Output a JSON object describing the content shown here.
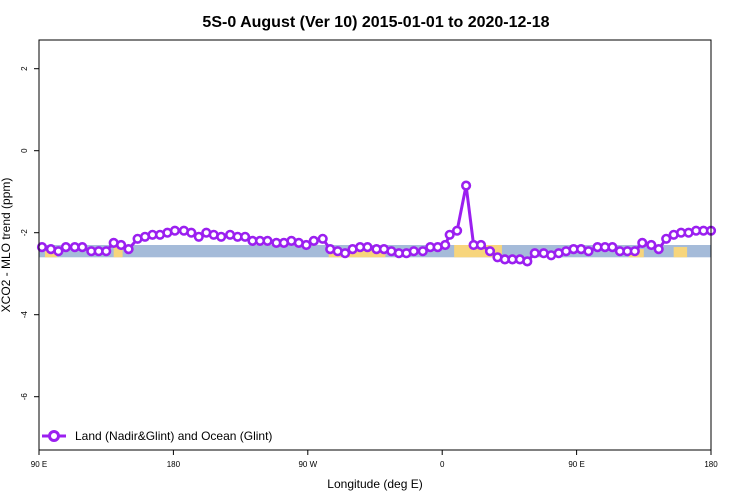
{
  "chart_data": {
    "type": "line",
    "title": "5S-0 August (Ver 10)   2015-01-01 to 2020-12-18",
    "xlabel": "Longitude (deg E)",
    "ylabel": "XCO2 - MLO trend (ppm)",
    "x_ticks": [
      {
        "value": 90,
        "label": "90 E"
      },
      {
        "value": 180,
        "label": "180"
      },
      {
        "value": 270,
        "label": "90 W"
      },
      {
        "value": 360,
        "label": "0"
      },
      {
        "value": 450,
        "label": "90 E"
      },
      {
        "value": 540,
        "label": "180"
      }
    ],
    "y_ticks": [
      {
        "value": 2,
        "label": "2"
      },
      {
        "value": 0,
        "label": "0"
      },
      {
        "value": -2,
        "label": "-2"
      },
      {
        "value": -4,
        "label": "-4"
      },
      {
        "value": -6,
        "label": "-6"
      }
    ],
    "xlim": [
      90,
      540
    ],
    "ylim": [
      -7.3,
      2.7
    ],
    "grid": false,
    "legend_position": "bottom-left",
    "band": {
      "y_min": -2.6,
      "y_max": -2.3,
      "color": "#a5bbd9"
    },
    "land_color": "#f7d57c",
    "land_segments": [
      {
        "x0": 94,
        "x1": 102,
        "y_top": -2.45
      },
      {
        "x0": 140,
        "x1": 146,
        "y_top": -2.35
      },
      {
        "x0": 284,
        "x1": 322,
        "y_top": -2.4
      },
      {
        "x0": 368,
        "x1": 400,
        "y_top": -2.3
      },
      {
        "x0": 485,
        "x1": 495,
        "y_top": -2.4
      },
      {
        "x0": 515,
        "x1": 524,
        "y_top": -2.35
      }
    ],
    "series": [
      {
        "name": "Land (Nadir&Glint) and Ocean (Glint)",
        "color": "#9b1ff0",
        "x": [
          92,
          98,
          103,
          108,
          114,
          119,
          125,
          130,
          135,
          140,
          145,
          150,
          156,
          161,
          166,
          171,
          176,
          181,
          187,
          192,
          197,
          202,
          207,
          212,
          218,
          223,
          228,
          233,
          238,
          243,
          249,
          254,
          259,
          264,
          269,
          274,
          280,
          285,
          290,
          295,
          300,
          305,
          310,
          316,
          321,
          326,
          331,
          336,
          341,
          347,
          352,
          357,
          362,
          365,
          370,
          376,
          381,
          386,
          392,
          397,
          402,
          407,
          412,
          417,
          422,
          428,
          433,
          438,
          443,
          448,
          453,
          458,
          464,
          469,
          474,
          479,
          484,
          489,
          494,
          500,
          505,
          510,
          515,
          520,
          525,
          530,
          535,
          540
        ],
        "y": [
          -2.35,
          -2.4,
          -2.45,
          -2.35,
          -2.35,
          -2.35,
          -2.45,
          -2.45,
          -2.45,
          -2.25,
          -2.3,
          -2.4,
          -2.15,
          -2.1,
          -2.05,
          -2.05,
          -2.0,
          -1.95,
          -1.95,
          -2.0,
          -2.1,
          -2.0,
          -2.05,
          -2.1,
          -2.05,
          -2.1,
          -2.1,
          -2.2,
          -2.2,
          -2.2,
          -2.25,
          -2.25,
          -2.2,
          -2.25,
          -2.3,
          -2.2,
          -2.15,
          -2.4,
          -2.45,
          -2.5,
          -2.4,
          -2.35,
          -2.35,
          -2.4,
          -2.4,
          -2.45,
          -2.5,
          -2.5,
          -2.45,
          -2.45,
          -2.35,
          -2.35,
          -2.3,
          -2.05,
          -1.95,
          -0.85,
          -2.3,
          -2.3,
          -2.45,
          -2.6,
          -2.65,
          -2.65,
          -2.65,
          -2.7,
          -2.5,
          -2.5,
          -2.55,
          -2.5,
          -2.45,
          -2.4,
          -2.4,
          -2.45,
          -2.35,
          -2.35,
          -2.35,
          -2.45,
          -2.45,
          -2.45,
          -2.25,
          -2.3,
          -2.4,
          -2.15,
          -2.05,
          -2.0,
          -2.0,
          -1.95,
          -1.95,
          -1.95
        ]
      }
    ]
  }
}
